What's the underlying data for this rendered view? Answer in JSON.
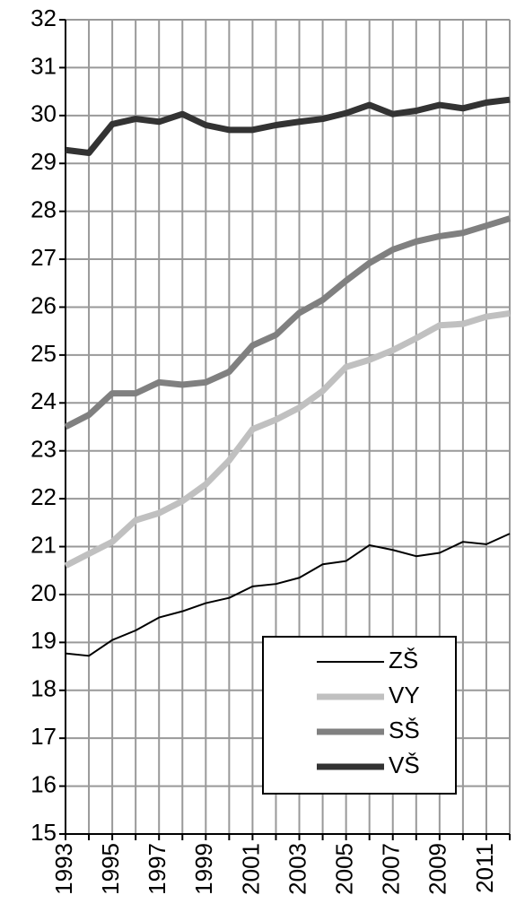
{
  "chart_data": {
    "type": "line",
    "categories": [
      "1993",
      null,
      "1995",
      null,
      "1997",
      null,
      "1999",
      null,
      "2001",
      null,
      "2003",
      null,
      "2005",
      null,
      "2007",
      null,
      "2009",
      null,
      "2011",
      null
    ],
    "series": [
      {
        "name": "ZŠ",
        "color": "#000000",
        "values": [
          18.77,
          18.72,
          19.05,
          19.25,
          19.52,
          19.65,
          19.82,
          19.93,
          20.17,
          20.22,
          20.35,
          20.63,
          20.7,
          21.03,
          20.93,
          20.8,
          20.87,
          21.1,
          21.05,
          21.27
        ]
      },
      {
        "name": "VY",
        "color": "#c0c0c0",
        "values": [
          20.6,
          20.85,
          21.1,
          21.55,
          21.7,
          21.95,
          22.3,
          22.8,
          23.45,
          23.65,
          23.9,
          24.25,
          24.75,
          24.9,
          25.1,
          25.35,
          25.62,
          25.65,
          25.8,
          25.87
        ]
      },
      {
        "name": "SŠ",
        "color": "#808080",
        "values": [
          23.5,
          23.75,
          24.2,
          24.2,
          24.43,
          24.38,
          24.43,
          24.65,
          25.2,
          25.42,
          25.88,
          26.15,
          26.55,
          26.92,
          27.2,
          27.37,
          27.48,
          27.55,
          27.7,
          27.85
        ]
      },
      {
        "name": "VŠ",
        "color": "#333333",
        "values": [
          29.28,
          29.22,
          29.82,
          29.93,
          29.87,
          30.03,
          29.8,
          29.7,
          29.7,
          29.8,
          29.87,
          29.93,
          30.05,
          30.22,
          30.03,
          30.1,
          30.22,
          30.15,
          30.27,
          30.33
        ]
      }
    ],
    "ylim": [
      15,
      32
    ],
    "yticks": [
      15,
      16,
      17,
      18,
      19,
      20,
      21,
      22,
      23,
      24,
      25,
      26,
      27,
      28,
      29,
      30,
      31,
      32
    ],
    "grid": true,
    "legend": "lower right"
  }
}
